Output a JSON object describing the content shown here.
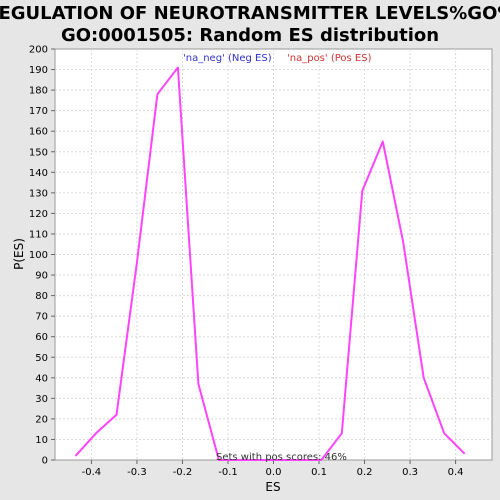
{
  "chart_data": {
    "type": "line",
    "title_line1": "REGULATION OF NEUROTRANSMITTER LEVELS%GO%",
    "title_line2": "GO:0001505: Random ES distribution",
    "xlabel": "ES",
    "ylabel": "P(ES)",
    "xlim": [
      -0.48,
      0.48
    ],
    "ylim": [
      0,
      200
    ],
    "x_ticks": [
      -0.4,
      -0.3,
      -0.2,
      -0.1,
      0.0,
      0.1,
      0.2,
      0.3,
      0.4
    ],
    "x_tick_labels": [
      "-0.4",
      "-0.3",
      "-0.2",
      "-0.1",
      "0.0",
      "0.1",
      "0.2",
      "0.3",
      "0.4"
    ],
    "y_ticks": [
      0,
      10,
      20,
      30,
      40,
      50,
      60,
      70,
      80,
      90,
      100,
      110,
      120,
      130,
      140,
      150,
      160,
      170,
      180,
      190,
      200
    ],
    "y_tick_labels": [
      "0",
      "10",
      "20",
      "30",
      "40",
      "50",
      "60",
      "70",
      "80",
      "90",
      "100",
      "110",
      "120",
      "130",
      "140",
      "150",
      "160",
      "170",
      "180",
      "190",
      "200"
    ],
    "grid": true,
    "legend": [
      {
        "label": "'na_neg' (Neg ES)",
        "color": "#3333cc"
      },
      {
        "label": "'na_pos' (Pos ES)",
        "color": "#cc3333"
      }
    ],
    "legend_placement": "top-center",
    "annotation": "Sets with pos scores: 46%",
    "series": [
      {
        "color": "#ff44ff",
        "x": [
          -0.435,
          -0.39,
          -0.345,
          -0.3,
          -0.255,
          -0.21,
          -0.165,
          -0.12,
          -0.075,
          -0.03,
          0.015,
          0.06,
          0.105,
          0.15,
          0.195,
          0.24,
          0.285,
          0.33,
          0.375,
          0.42
        ],
        "y": [
          2,
          13,
          22,
          96,
          178,
          191,
          37,
          0,
          0,
          0,
          0,
          0,
          0,
          13,
          131,
          155,
          106,
          40,
          13,
          3
        ]
      }
    ]
  }
}
